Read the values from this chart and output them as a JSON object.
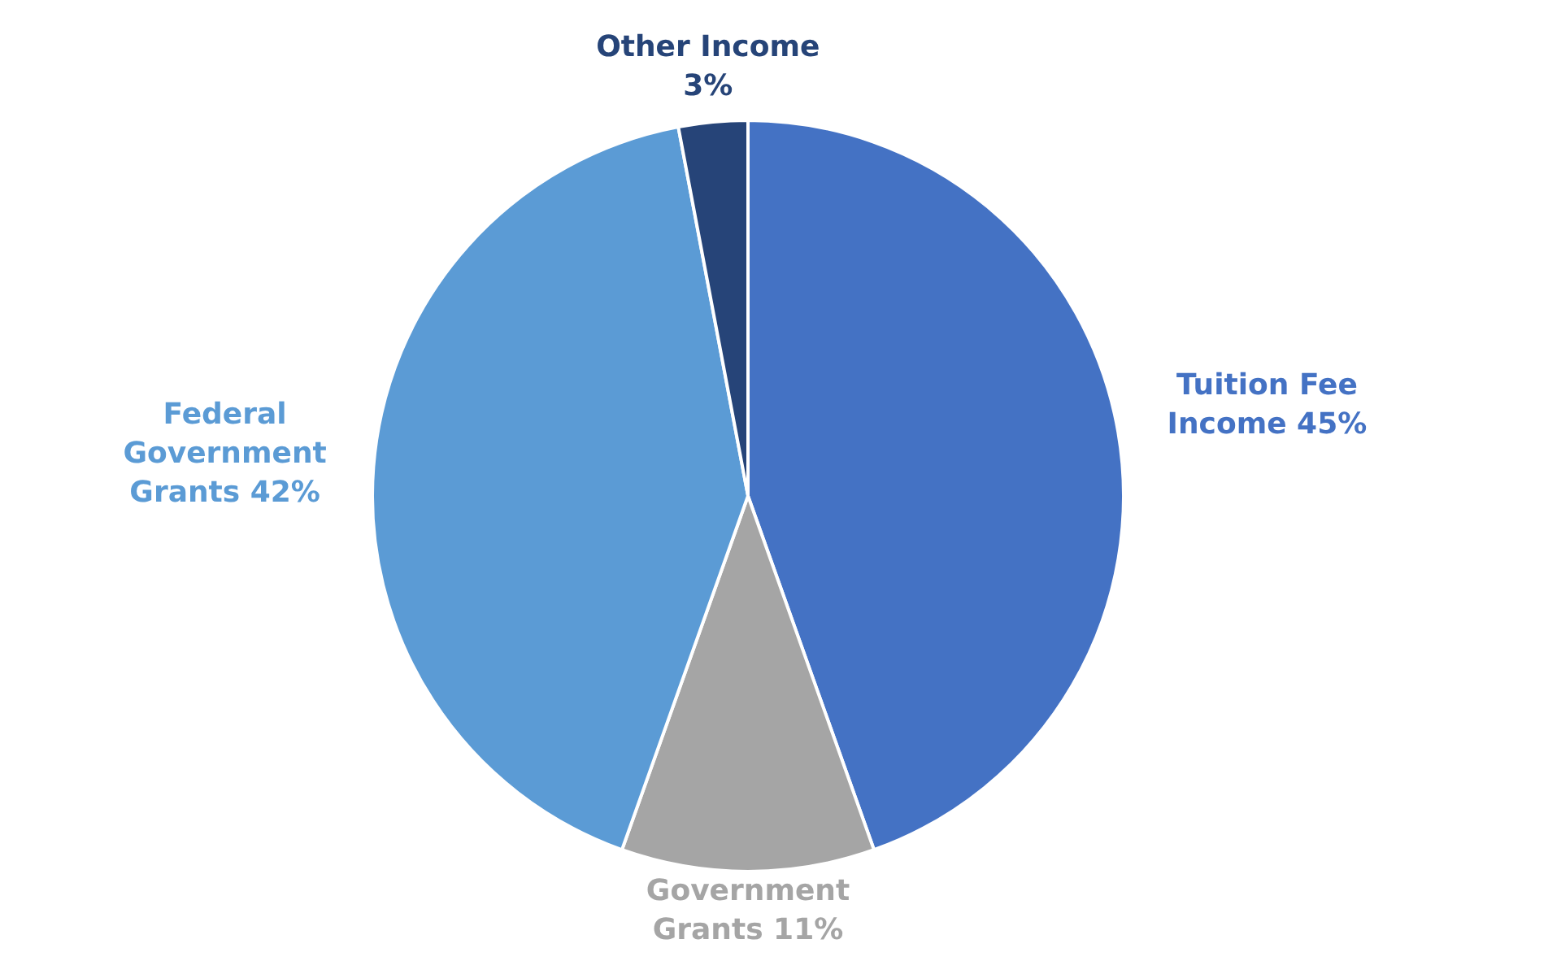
{
  "chart_data": {
    "type": "pie",
    "categories": [
      "Tuition Fee Income",
      "Government Grants",
      "Federal Government Grants",
      "Other Income"
    ],
    "values": [
      45,
      11,
      42,
      3
    ],
    "colors": [
      "#4472c4",
      "#a5a5a5",
      "#5b9bd5",
      "#264478"
    ],
    "value_labels": [
      "45%",
      "11%",
      "42%",
      "3%"
    ],
    "legend": false
  }
}
